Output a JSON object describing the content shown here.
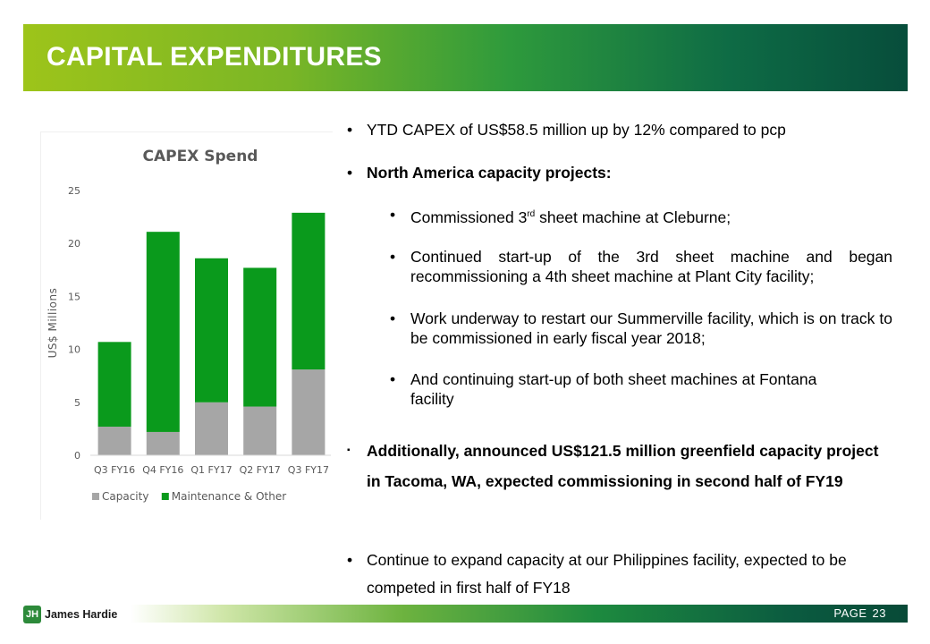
{
  "header": {
    "title": "CAPITAL EXPENDITURES"
  },
  "bullets": {
    "b1": "YTD CAPEX of US$58.5 million up by 12% compared to pcp",
    "b2": "North America capacity projects:",
    "s1_pre": "Commissioned 3",
    "s1_sup": "rd",
    "s1_post": " sheet machine at Cleburne;",
    "s2": "Continued start-up of the 3rd sheet machine and began recommissioning a 4th sheet machine at Plant City facility;",
    "s3": "Work underway to restart our Summerville facility, which is on track to be commissioned in early fiscal year 2018;",
    "s4": "And continuing start-up of both sheet machines at Fontana facility",
    "b3": "Additionally, announced US$121.5 million greenfield capacity project in Tacoma, WA, expected commissioning in second half of FY19",
    "b4": "Continue to expand capacity at our Philippines facility, expected to be competed in first half of FY18",
    "bullet_glyph": "•",
    "square_glyph": "▪"
  },
  "footer": {
    "brand": "James Hardie",
    "page_label": "PAGE",
    "page_number": "23"
  },
  "chart_data": {
    "type": "bar",
    "stacked": true,
    "title": "CAPEX Spend",
    "ylabel": "US$ Millions",
    "xlabel": "",
    "ylim": [
      0,
      25
    ],
    "yticks": [
      0,
      5,
      10,
      15,
      20,
      25
    ],
    "categories": [
      "Q3 FY16",
      "Q4 FY16",
      "Q1 FY17",
      "Q2 FY17",
      "Q3 FY17"
    ],
    "series": [
      {
        "name": "Capacity",
        "color": "#a6a6a6",
        "values": [
          2.7,
          2.2,
          5.0,
          4.6,
          8.1
        ]
      },
      {
        "name": "Maintenance & Other",
        "color": "#0a9a1c",
        "values": [
          8.0,
          18.9,
          13.6,
          13.1,
          14.8
        ]
      }
    ],
    "legend_position": "bottom"
  }
}
